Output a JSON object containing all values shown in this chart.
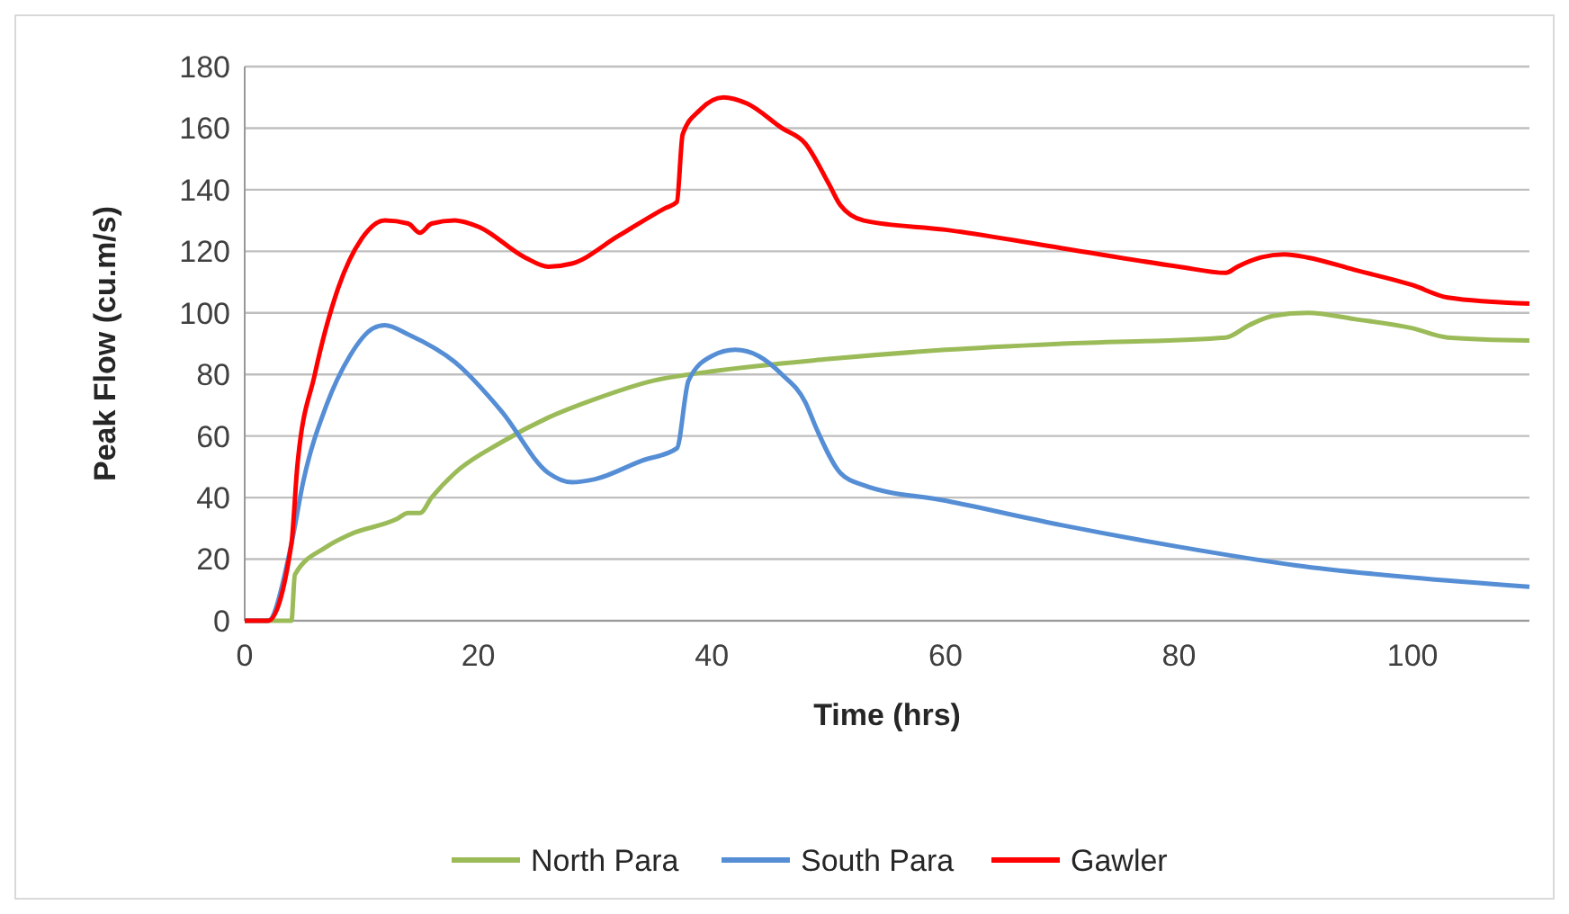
{
  "chart_data": {
    "type": "line",
    "xlabel": "Time (hrs)",
    "ylabel": "Peak Flow (cu.m/s)",
    "xlim": [
      0,
      110
    ],
    "xticks": [
      0,
      20,
      40,
      60,
      80,
      100
    ],
    "ylim": [
      0,
      180
    ],
    "yticks": [
      0,
      20,
      40,
      60,
      80,
      100,
      120,
      140,
      160,
      180
    ],
    "grid": "y",
    "legend": "bottom",
    "line_style": "solid",
    "series": [
      {
        "name": "North Para",
        "color": "#9bbb59",
        "x": [
          0,
          4,
          4.3,
          7,
          9,
          13,
          14,
          15,
          16,
          18,
          22,
          26,
          30,
          35,
          40,
          50,
          60,
          70,
          84,
          86,
          88,
          91,
          95,
          100,
          103,
          110
        ],
        "values": [
          0,
          0,
          15,
          24,
          28,
          33,
          35,
          35,
          40,
          48,
          58,
          66,
          72,
          78,
          81,
          85,
          88,
          90,
          92,
          96,
          99,
          100,
          98,
          95,
          92,
          91
        ]
      },
      {
        "name": "South Para",
        "color": "#558ed5",
        "x": [
          0,
          2,
          4,
          5,
          7,
          9,
          11,
          12,
          14,
          18,
          22,
          26,
          28,
          30,
          34,
          37,
          38,
          40,
          42,
          44,
          46,
          48,
          49,
          51,
          53,
          60,
          70,
          80,
          90,
          100,
          110
        ],
        "values": [
          0,
          0,
          25,
          45,
          70,
          86,
          95,
          96,
          93,
          84,
          68,
          48,
          45,
          46,
          52,
          56,
          78,
          86,
          88,
          86,
          80,
          71,
          62,
          48,
          44,
          39,
          31,
          24,
          18,
          14,
          11
        ]
      },
      {
        "name": "Gawler",
        "color": "#ff0000",
        "x": [
          0,
          2,
          4,
          4.5,
          6,
          8,
          10,
          12,
          14,
          15,
          16,
          18,
          20,
          24,
          26,
          28,
          32,
          36,
          37,
          37.5,
          39,
          41,
          43,
          46,
          48,
          50,
          51,
          53,
          60,
          70,
          80,
          84,
          85,
          87,
          89,
          91,
          95,
          100,
          103,
          110
        ],
        "values": [
          0,
          0,
          25,
          50,
          80,
          108,
          124,
          130,
          129,
          126,
          129,
          130,
          128,
          118,
          115,
          116,
          125,
          134,
          136,
          158,
          166,
          170,
          168,
          160,
          155,
          142,
          135,
          130,
          127,
          121,
          115,
          113,
          115,
          118,
          119,
          118,
          114,
          109,
          105,
          103
        ]
      }
    ]
  }
}
